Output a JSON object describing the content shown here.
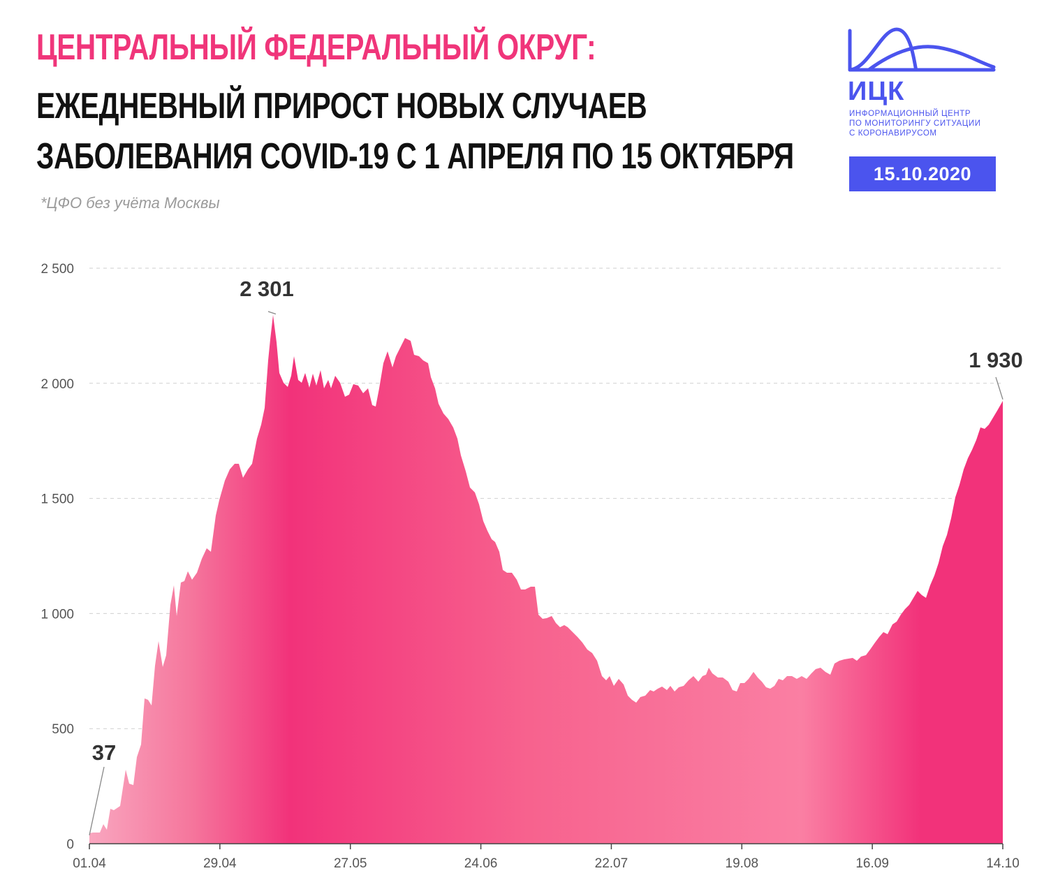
{
  "header": {
    "title_line1": "ЦЕНТРАЛЬНЫЙ ФЕДЕРАЛЬНЫЙ ОКРУГ:",
    "title_line2": "ЕЖЕДНЕВНЫЙ ПРИРОСТ НОВЫХ СЛУЧАЕВ",
    "title_line3": "ЗАБОЛЕВАНИЯ COVID-19 С 1 АПРЕЛЯ ПО 15 ОКТЯБРЯ",
    "footnote": "*ЦФО без учёта Москвы"
  },
  "logo": {
    "name": "ИЦК",
    "tagline": [
      "ИНФОРМАЦИОННЫЙ ЦЕНТР",
      "ПО МОНИТОРИНГУ СИТУАЦИИ",
      "С КОРОНАВИРУСОМ"
    ],
    "icon": "hill-wave-icon"
  },
  "date_badge": "15.10.2020",
  "colors": {
    "title_accent": "#f0357a",
    "brand": "#4b54ee",
    "area_dark": "#f2327a",
    "area_light": "#f9a6bf"
  },
  "chart_data": {
    "type": "area",
    "title": "",
    "xlabel": "",
    "ylabel": "",
    "x_range": [
      "01.04",
      "14.10"
    ],
    "x_ticks": [
      "01.04",
      "29.04",
      "27.05",
      "24.06",
      "22.07",
      "19.08",
      "16.09",
      "14.10"
    ],
    "y_ticks": [
      0,
      500,
      1000,
      1500,
      2000,
      2500
    ],
    "y_tick_labels": [
      "0",
      "500",
      "1 000",
      "1 500",
      "2 000",
      "2 500"
    ],
    "ylim": [
      0,
      2500
    ],
    "grid": true,
    "legend": "none",
    "annotations": [
      {
        "x": "01.04",
        "y": 37,
        "label": "37"
      },
      {
        "x": "11.05",
        "y": 2301,
        "label": "2 301"
      },
      {
        "x": "14.10",
        "y": 1930,
        "label": "1 930"
      }
    ]
  }
}
